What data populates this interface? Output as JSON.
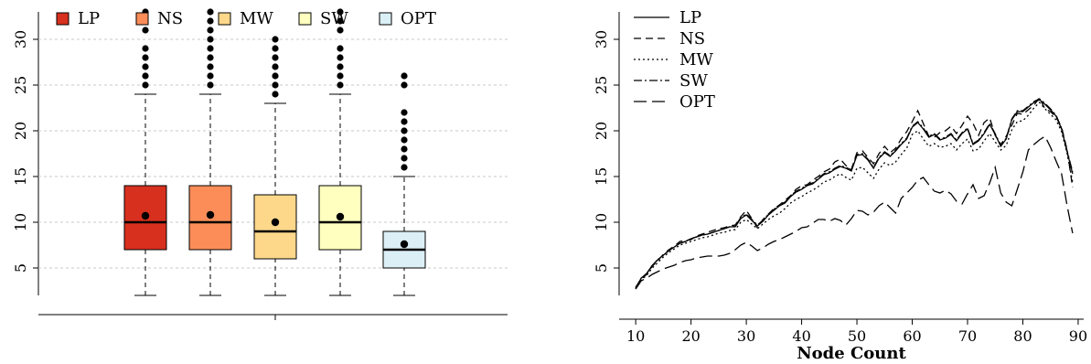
{
  "chart_data": [
    {
      "type": "box",
      "legend_position": "top",
      "ylim": [
        2,
        33
      ],
      "yticks": [
        5,
        10,
        15,
        20,
        25,
        30
      ],
      "grid": "horizontal dashed",
      "series": [
        {
          "name": "LP",
          "color": "#d7301f",
          "min": 2,
          "q1": 7,
          "median": 10,
          "q3": 14,
          "max": 24,
          "mean": 10.7,
          "outliers": [
            25,
            26,
            27,
            28,
            29,
            31,
            32,
            33
          ]
        },
        {
          "name": "NS",
          "color": "#fc8d59",
          "min": 2,
          "q1": 7,
          "median": 10,
          "q3": 14,
          "max": 24,
          "mean": 10.8,
          "outliers": [
            25,
            26,
            27,
            28,
            29,
            30,
            31,
            32,
            33
          ]
        },
        {
          "name": "MW",
          "color": "#fdd78a",
          "min": 2,
          "q1": 6,
          "median": 9,
          "q3": 13,
          "max": 23,
          "mean": 10.0,
          "outliers": [
            24,
            25,
            26,
            27,
            28,
            29,
            30
          ]
        },
        {
          "name": "SW",
          "color": "#ffffbf",
          "min": 2,
          "q1": 7,
          "median": 10,
          "q3": 14,
          "max": 24,
          "mean": 10.6,
          "outliers": [
            25,
            26,
            27,
            28,
            29,
            31,
            32,
            33
          ]
        },
        {
          "name": "OPT",
          "color": "#dbeff6",
          "min": 2,
          "q1": 5,
          "median": 7,
          "q3": 9,
          "max": 15,
          "mean": 7.6,
          "outliers": [
            16,
            17,
            18,
            19,
            20,
            21,
            22,
            25,
            26
          ]
        }
      ]
    },
    {
      "type": "line",
      "xlabel": "Node Count",
      "legend_position": "top-left",
      "xlim": [
        7,
        91
      ],
      "ylim": [
        2,
        33
      ],
      "xticks": [
        10,
        20,
        30,
        40,
        50,
        60,
        70,
        80,
        90
      ],
      "yticks": [
        5,
        10,
        15,
        20,
        25,
        30
      ],
      "x": [
        10,
        11,
        12,
        13,
        14,
        15,
        16,
        17,
        18,
        19,
        20,
        21,
        22,
        23,
        24,
        25,
        26,
        27,
        28,
        29,
        30,
        31,
        32,
        33,
        34,
        35,
        36,
        37,
        38,
        39,
        40,
        41,
        42,
        43,
        44,
        45,
        46,
        47,
        48,
        49,
        50,
        51,
        52,
        53,
        54,
        55,
        56,
        57,
        58,
        59,
        60,
        61,
        62,
        63,
        64,
        65,
        66,
        67,
        68,
        69,
        70,
        71,
        72,
        73,
        74,
        75,
        76,
        77,
        78,
        79,
        80,
        81,
        82,
        83,
        84,
        85,
        86,
        87,
        88,
        89
      ],
      "series": [
        {
          "name": "LP",
          "dash": "",
          "values": [
            2.8,
            3.9,
            4.4,
            5.3,
            5.9,
            6.4,
            6.9,
            7.3,
            7.7,
            7.9,
            8.2,
            8.4,
            8.6,
            8.7,
            8.9,
            9.1,
            9.3,
            9.5,
            9.5,
            10.4,
            10.8,
            10.2,
            9.6,
            10.1,
            10.8,
            11.3,
            11.8,
            12.1,
            12.8,
            13.3,
            13.6,
            14.0,
            14.2,
            14.7,
            15.2,
            15.4,
            15.8,
            16.1,
            15.9,
            15.6,
            17.3,
            17.4,
            16.8,
            15.9,
            17.0,
            17.6,
            17.2,
            17.8,
            18.5,
            19.1,
            20.4,
            20.9,
            20.2,
            19.3,
            19.6,
            19.0,
            19.2,
            19.6,
            18.9,
            19.7,
            20.2,
            18.5,
            18.9,
            19.7,
            20.7,
            19.6,
            18.3,
            19.1,
            21.2,
            22.1,
            22.1,
            22.6,
            23.1,
            23.4,
            22.9,
            22.3,
            21.6,
            20.2,
            17.7,
            15.3
          ]
        },
        {
          "name": "NS",
          "dash": "8,5",
          "values": [
            2.9,
            3.8,
            4.3,
            5.2,
            5.8,
            6.5,
            7.0,
            7.4,
            7.9,
            8.0,
            8.1,
            8.5,
            8.7,
            8.9,
            9.1,
            9.3,
            9.4,
            9.6,
            9.7,
            10.6,
            11.3,
            10.4,
            9.4,
            10.3,
            10.9,
            11.5,
            11.9,
            12.4,
            12.9,
            13.6,
            14.0,
            14.1,
            14.6,
            15.0,
            15.5,
            15.8,
            16.6,
            16.9,
            16.2,
            15.8,
            17.6,
            17.8,
            17.1,
            16.4,
            17.5,
            18.3,
            17.6,
            18.1,
            19.1,
            19.9,
            21.0,
            22.2,
            20.8,
            19.4,
            19.3,
            19.8,
            20.0,
            20.5,
            19.7,
            20.6,
            21.6,
            20.8,
            19.5,
            20.9,
            21.4,
            19.5,
            18.5,
            19.4,
            20.6,
            21.9,
            21.8,
            22.3,
            22.8,
            23.6,
            22.4,
            22.1,
            21.5,
            20.4,
            17.9,
            13.8
          ]
        },
        {
          "name": "MW",
          "dash": "2,3",
          "values": [
            2.7,
            3.7,
            4.2,
            5.0,
            5.6,
            6.2,
            6.7,
            7.1,
            7.5,
            7.7,
            7.9,
            8.1,
            8.3,
            8.4,
            8.6,
            8.8,
            8.9,
            9.1,
            9.2,
            10.0,
            10.3,
            9.8,
            9.3,
            9.8,
            10.3,
            10.7,
            11.0,
            11.5,
            12.1,
            12.5,
            12.8,
            13.2,
            13.5,
            13.9,
            14.4,
            14.6,
            15.0,
            15.3,
            14.9,
            14.6,
            15.9,
            16.0,
            15.4,
            14.8,
            15.8,
            16.5,
            16.2,
            16.6,
            17.4,
            18.1,
            19.6,
            20.0,
            19.1,
            18.3,
            18.6,
            18.2,
            18.3,
            18.6,
            17.9,
            18.6,
            19.1,
            17.8,
            18.0,
            18.9,
            19.7,
            18.8,
            17.9,
            18.4,
            20.1,
            21.0,
            21.1,
            21.7,
            22.5,
            23.1,
            22.4,
            21.8,
            21.2,
            19.9,
            17.5,
            14.4
          ]
        },
        {
          "name": "SW",
          "dash": "9,3,2,3",
          "values": [
            2.8,
            3.9,
            4.4,
            5.3,
            5.9,
            6.4,
            6.9,
            7.3,
            7.7,
            7.9,
            8.2,
            8.4,
            8.6,
            8.7,
            8.9,
            9.1,
            9.3,
            9.5,
            9.6,
            10.5,
            10.9,
            10.3,
            9.7,
            10.2,
            10.9,
            11.4,
            11.9,
            12.2,
            12.9,
            13.4,
            13.7,
            14.1,
            14.3,
            14.8,
            15.3,
            15.5,
            15.9,
            16.2,
            16.0,
            15.7,
            17.4,
            17.5,
            16.9,
            16.0,
            17.1,
            17.7,
            17.3,
            17.9,
            18.6,
            19.2,
            20.5,
            21.0,
            20.3,
            19.4,
            19.7,
            19.1,
            19.3,
            19.7,
            19.0,
            19.8,
            20.3,
            18.6,
            19.0,
            19.8,
            20.8,
            19.7,
            18.4,
            19.2,
            21.3,
            22.2,
            22.2,
            22.7,
            23.2,
            23.5,
            23.0,
            22.4,
            21.7,
            20.3,
            17.8,
            15.5
          ]
        },
        {
          "name": "OPT",
          "dash": "14,6",
          "values": [
            2.7,
            3.6,
            3.9,
            4.3,
            4.6,
            4.9,
            5.1,
            5.3,
            5.6,
            5.8,
            5.9,
            6.1,
            6.2,
            6.3,
            6.3,
            6.3,
            6.4,
            6.6,
            7.0,
            7.5,
            7.8,
            7.4,
            6.9,
            7.2,
            7.6,
            7.9,
            8.1,
            8.4,
            8.7,
            9.0,
            9.4,
            9.5,
            9.9,
            10.3,
            10.3,
            10.1,
            10.4,
            10.2,
            9.7,
            10.4,
            11.3,
            11.2,
            10.8,
            11.1,
            11.8,
            12.2,
            11.6,
            11.0,
            12.6,
            13.2,
            13.8,
            14.6,
            14.9,
            14.1,
            13.4,
            13.2,
            13.5,
            13.1,
            12.3,
            12.0,
            13.1,
            14.1,
            12.6,
            12.9,
            14.3,
            16.0,
            13.2,
            12.2,
            11.8,
            13.6,
            15.5,
            17.9,
            18.5,
            19.0,
            19.4,
            18.2,
            16.7,
            15.3,
            11.8,
            8.8
          ]
        }
      ]
    }
  ]
}
